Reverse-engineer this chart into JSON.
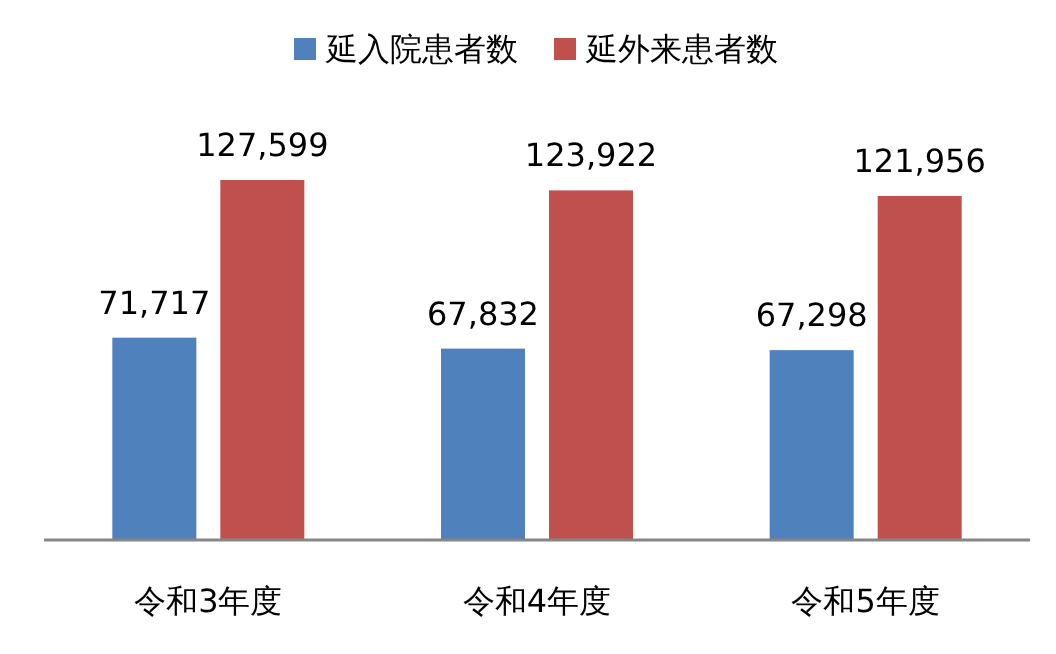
{
  "chart_data": {
    "type": "bar",
    "categories": [
      "令和3年度",
      "令和4年度",
      "令和5年度"
    ],
    "series": [
      {
        "name": "延入院患者数",
        "color": "#4f81bd",
        "values": [
          71717,
          67832,
          67298
        ],
        "value_labels": [
          "71,717",
          "67,832",
          "67,298"
        ]
      },
      {
        "name": "延外来患者数",
        "color": "#c0504d",
        "values": [
          127599,
          123922,
          121956
        ],
        "value_labels": [
          "127,599",
          "123,922",
          "121,956"
        ]
      }
    ],
    "legend": "top"
  }
}
